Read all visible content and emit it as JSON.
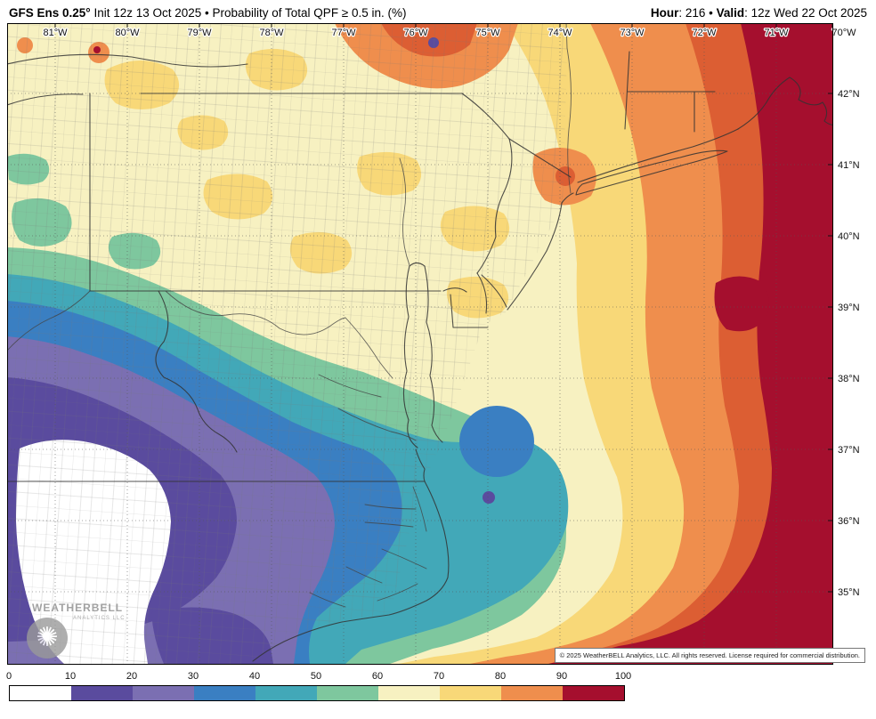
{
  "header": {
    "left_title_bold": "GFS Ens 0.25°",
    "left_title_rest": " Init 12z 13 Oct 2025 • Probability of Total QPF ≥ 0.5 in. (%)",
    "hour_label": "Hour",
    "hour_value": ": 216 • ",
    "valid_label": "Valid",
    "valid_value": ": 12z Wed 22 Oct 2025"
  },
  "map": {
    "lon_labels": [
      "81°W",
      "80°W",
      "79°W",
      "78°W",
      "77°W",
      "76°W",
      "75°W",
      "74°W",
      "73°W",
      "72°W",
      "71°W",
      "70°W"
    ],
    "lat_labels": [
      "42°N",
      "41°N",
      "40°N",
      "39°N",
      "38°N",
      "37°N",
      "36°N",
      "35°N"
    ],
    "copyright": "© 2025 WeatherBELL Analytics, LLC. All rights reserved. License required for commercial distribution.",
    "watermark_title": "WEATHERBELL",
    "watermark_sub": "ANALYTICS LLC"
  },
  "legend": {
    "ticks": [
      "0",
      "10",
      "20",
      "30",
      "40",
      "50",
      "60",
      "70",
      "80",
      "90",
      "100"
    ],
    "colors": [
      "#ffffff",
      "#5a4b9e",
      "#7b6fb2",
      "#3a7fc2",
      "#42a8b8",
      "#7ec79e",
      "#f7f1c1",
      "#f8d878",
      "#ef8e4d",
      "#a50f2e"
    ]
  }
}
